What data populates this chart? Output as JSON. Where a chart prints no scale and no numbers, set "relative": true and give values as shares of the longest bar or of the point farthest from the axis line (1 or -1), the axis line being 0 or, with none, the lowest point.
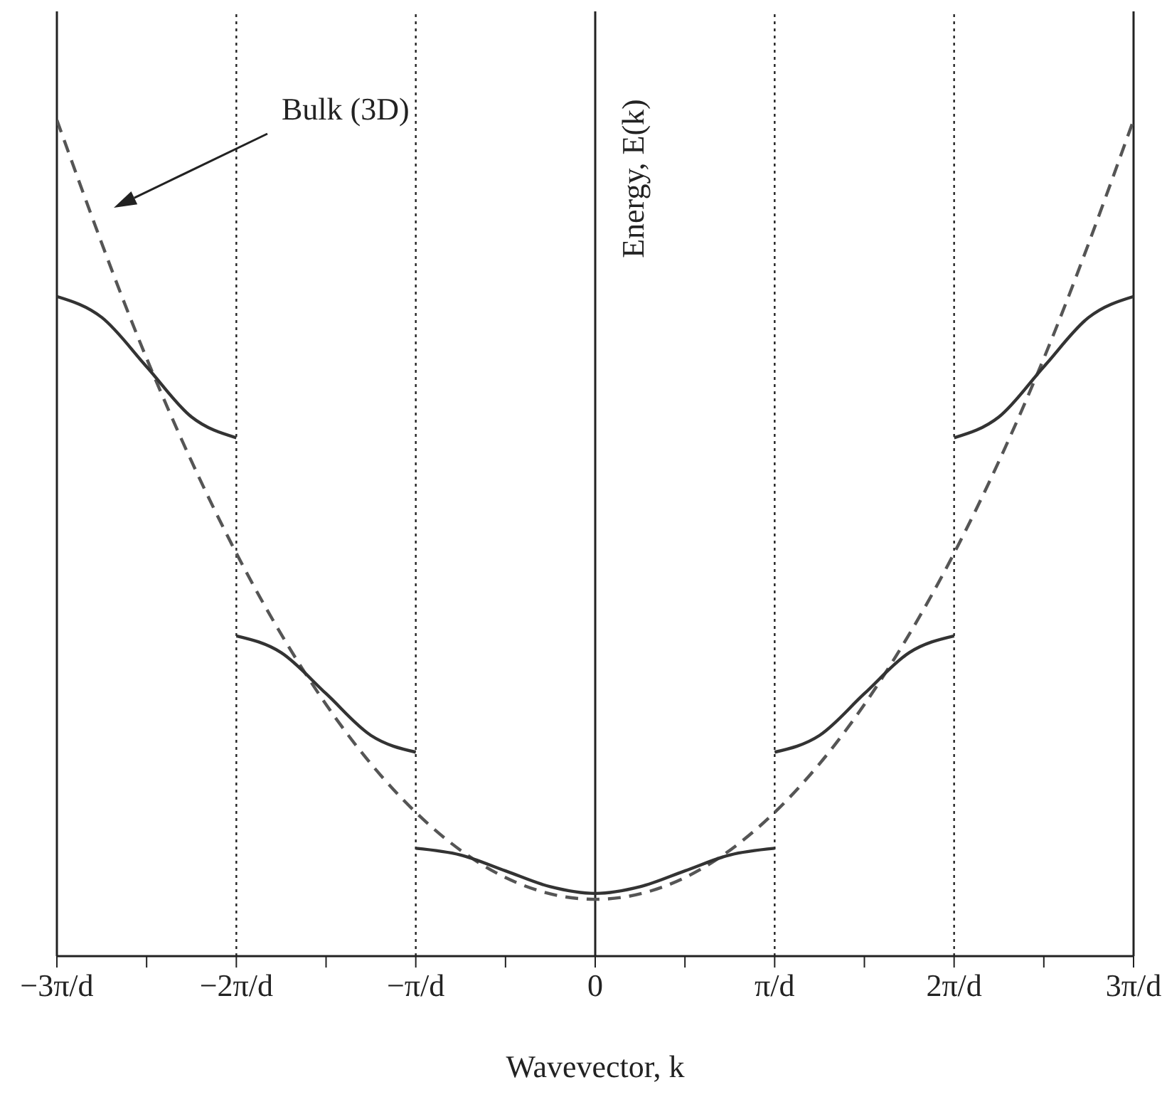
{
  "chart_data": {
    "type": "line",
    "relative": true,
    "xlabel": "Wavevector, k",
    "ylabel": "Energy, E(k)",
    "xlim": [
      -3,
      3
    ],
    "xticks": [
      {
        "value": -3,
        "label": "−3π/d"
      },
      {
        "value": -2.5,
        "label": null
      },
      {
        "value": -2,
        "label": "−2π/d"
      },
      {
        "value": -1.5,
        "label": null
      },
      {
        "value": -1,
        "label": "−π/d"
      },
      {
        "value": -0.5,
        "label": null
      },
      0,
      {
        "value": 0.5,
        "label": null
      },
      {
        "value": 1,
        "label": "π/d"
      },
      {
        "value": 1.5,
        "label": null
      },
      {
        "value": 2,
        "label": "2π/d"
      },
      {
        "value": 2.5,
        "label": null
      },
      {
        "value": 3,
        "label": "3π/d"
      }
    ],
    "tick_labels": "x",
    "marker": "none",
    "series": [
      {
        "color": "#555555",
        "line_style": "dashed",
        "x": [
          -3,
          -2.5,
          -2,
          -1.5,
          -1,
          -0.5,
          0,
          0.5,
          1,
          1.5,
          2,
          2.5,
          3
        ],
        "values": [
          1,
          0.715,
          0.482,
          0.301,
          0.172,
          0.094,
          0.068,
          0.094,
          0.172,
          0.301,
          0.482,
          0.715,
          1
        ]
      },
      {
        "color": "#333333",
        "line_style": "solid",
        "x": [
          -3,
          -2.75,
          -2.5,
          -2.25,
          -2
        ],
        "values": [
          0.789,
          0.764,
          0.705,
          0.645,
          0.62
        ]
      },
      {
        "color": "#333333",
        "line_style": "solid",
        "x": [
          -2,
          -1.75,
          -1.5,
          -1.25,
          -1
        ],
        "values": [
          0.383,
          0.363,
          0.314,
          0.264,
          0.244
        ]
      },
      {
        "color": "#333333",
        "line_style": "solid",
        "x": [
          -1,
          -0.75,
          -0.5,
          -0.25,
          0,
          0.25,
          0.5,
          0.75,
          1
        ],
        "values": [
          0.129,
          0.121,
          0.102,
          0.083,
          0.075,
          0.083,
          0.102,
          0.121,
          0.129
        ]
      },
      {
        "color": "#333333",
        "line_style": "solid",
        "x": [
          1,
          1.25,
          1.5,
          1.75,
          2
        ],
        "values": [
          0.244,
          0.264,
          0.314,
          0.363,
          0.383
        ]
      },
      {
        "color": "#333333",
        "line_style": "solid",
        "x": [
          2,
          2.25,
          2.5,
          2.75,
          3
        ],
        "values": [
          0.62,
          0.645,
          0.705,
          0.764,
          0.789
        ]
      }
    ],
    "ref_lines": [
      {
        "axis": "x",
        "value": -3,
        "line_style": "solid"
      },
      {
        "axis": "x",
        "value": -2,
        "line_style": "dotted"
      },
      {
        "axis": "x",
        "value": -1,
        "line_style": "dotted"
      },
      {
        "axis": "x",
        "value": 0,
        "line_style": "solid"
      },
      {
        "axis": "x",
        "value": 1,
        "line_style": "dotted"
      },
      {
        "axis": "x",
        "value": 2,
        "line_style": "dotted"
      },
      {
        "axis": "x",
        "value": 3,
        "line_style": "solid"
      }
    ],
    "annotations": [
      "Bulk (3D)"
    ]
  }
}
